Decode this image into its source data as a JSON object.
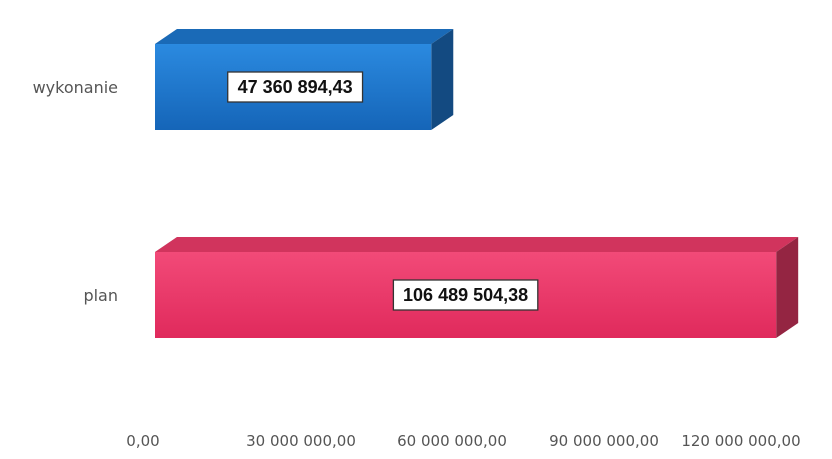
{
  "chart_data": {
    "type": "bar",
    "orientation": "horizontal",
    "style": "3d",
    "categories": [
      "wykonanie",
      "plan"
    ],
    "values": [
      47360894.43,
      106489504.38
    ],
    "data_labels": [
      "47 360 894,43",
      "106 489 504,38"
    ],
    "colors": [
      "#1e78d0",
      "#ee3b6a"
    ],
    "xlim": [
      0,
      120000000
    ],
    "xticks": [
      0,
      30000000,
      60000000,
      90000000,
      120000000
    ],
    "xtick_labels": [
      "0,00",
      "30 000 000,00",
      "60 000 000,00",
      "90 000 000,00",
      "120 000 000,00"
    ],
    "title": "",
    "xlabel": "",
    "ylabel": "",
    "grid": false,
    "legend": "none"
  }
}
